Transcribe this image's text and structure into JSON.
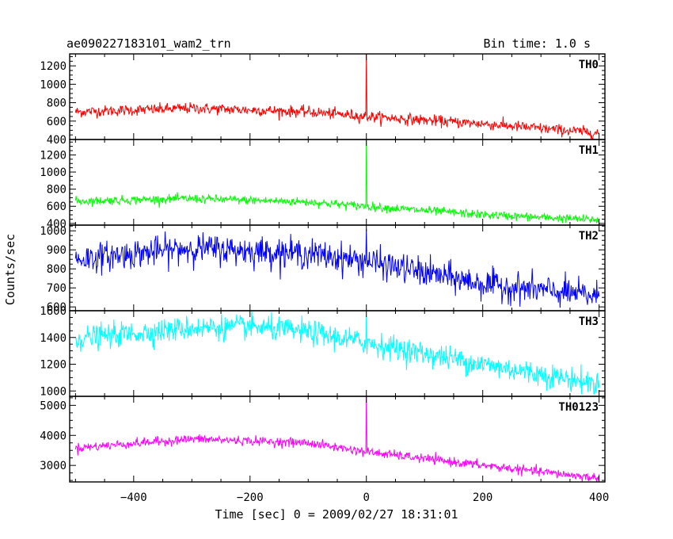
{
  "title_left": "ae090227183101_wam2_trn",
  "title_right": "Bin time: 1.0 s",
  "xlabel": "Time [sec] 0 = 2009/02/27 18:31:01",
  "ylabel": "Counts/sec",
  "chart_data": {
    "type": "line",
    "xlim": [
      -510,
      410
    ],
    "x_ticks": [
      -400,
      -200,
      0,
      200,
      400
    ],
    "x_tick_labels": [
      "−400",
      "−200",
      "0",
      "200",
      "400"
    ],
    "bin_time_s": 1.0,
    "panels": [
      {
        "name": "TH0",
        "color": "#ff0000",
        "ylim": [
          400,
          1330
        ],
        "y_ticks": [
          400,
          600,
          800,
          1000,
          1200
        ],
        "trend": [
          [
            -500,
            700
          ],
          [
            -300,
            740
          ],
          [
            -100,
            700
          ],
          [
            0,
            650
          ],
          [
            200,
            570
          ],
          [
            400,
            470
          ]
        ],
        "noise": 30,
        "spike": {
          "x": 0,
          "y": 1330
        }
      },
      {
        "name": "TH1",
        "color": "#00ff00",
        "ylim": [
          380,
          1380
        ],
        "y_ticks": [
          400,
          600,
          800,
          1000,
          1200
        ],
        "trend": [
          [
            -500,
            660
          ],
          [
            -300,
            690
          ],
          [
            -100,
            650
          ],
          [
            0,
            600
          ],
          [
            200,
            500
          ],
          [
            400,
            440
          ]
        ],
        "noise": 25,
        "spike": {
          "x": 0,
          "y": 1370
        }
      },
      {
        "name": "TH2",
        "color": "#0000ff",
        "ylim": [
          580,
          1030
        ],
        "y_ticks": [
          600,
          700,
          800,
          900,
          1000
        ],
        "trend": [
          [
            -500,
            850
          ],
          [
            -300,
            910
          ],
          [
            -100,
            880
          ],
          [
            0,
            840
          ],
          [
            100,
            780
          ],
          [
            200,
            720
          ],
          [
            400,
            655
          ]
        ],
        "noise": 38,
        "spike": {
          "x": 0,
          "y": 1010
        }
      },
      {
        "name": "TH3",
        "color": "#00ffff",
        "ylim": [
          960,
          1600
        ],
        "y_ticks": [
          1000,
          1200,
          1400,
          1600
        ],
        "trend": [
          [
            -500,
            1390
          ],
          [
            -300,
            1470
          ],
          [
            -200,
            1480
          ],
          [
            -100,
            1440
          ],
          [
            0,
            1360
          ],
          [
            200,
            1200
          ],
          [
            400,
            1050
          ]
        ],
        "noise": 45,
        "spike": {
          "x": 0,
          "y": 1560
        }
      },
      {
        "name": "TH0123",
        "color": "#ff00ff",
        "ylim": [
          2450,
          5300
        ],
        "y_ticks": [
          3000,
          4000,
          5000
        ],
        "trend": [
          [
            -500,
            3580
          ],
          [
            -300,
            3880
          ],
          [
            -100,
            3750
          ],
          [
            0,
            3450
          ],
          [
            200,
            3000
          ],
          [
            400,
            2570
          ]
        ],
        "noise": 75,
        "spike": {
          "x": 0,
          "y": 5300
        }
      }
    ]
  }
}
